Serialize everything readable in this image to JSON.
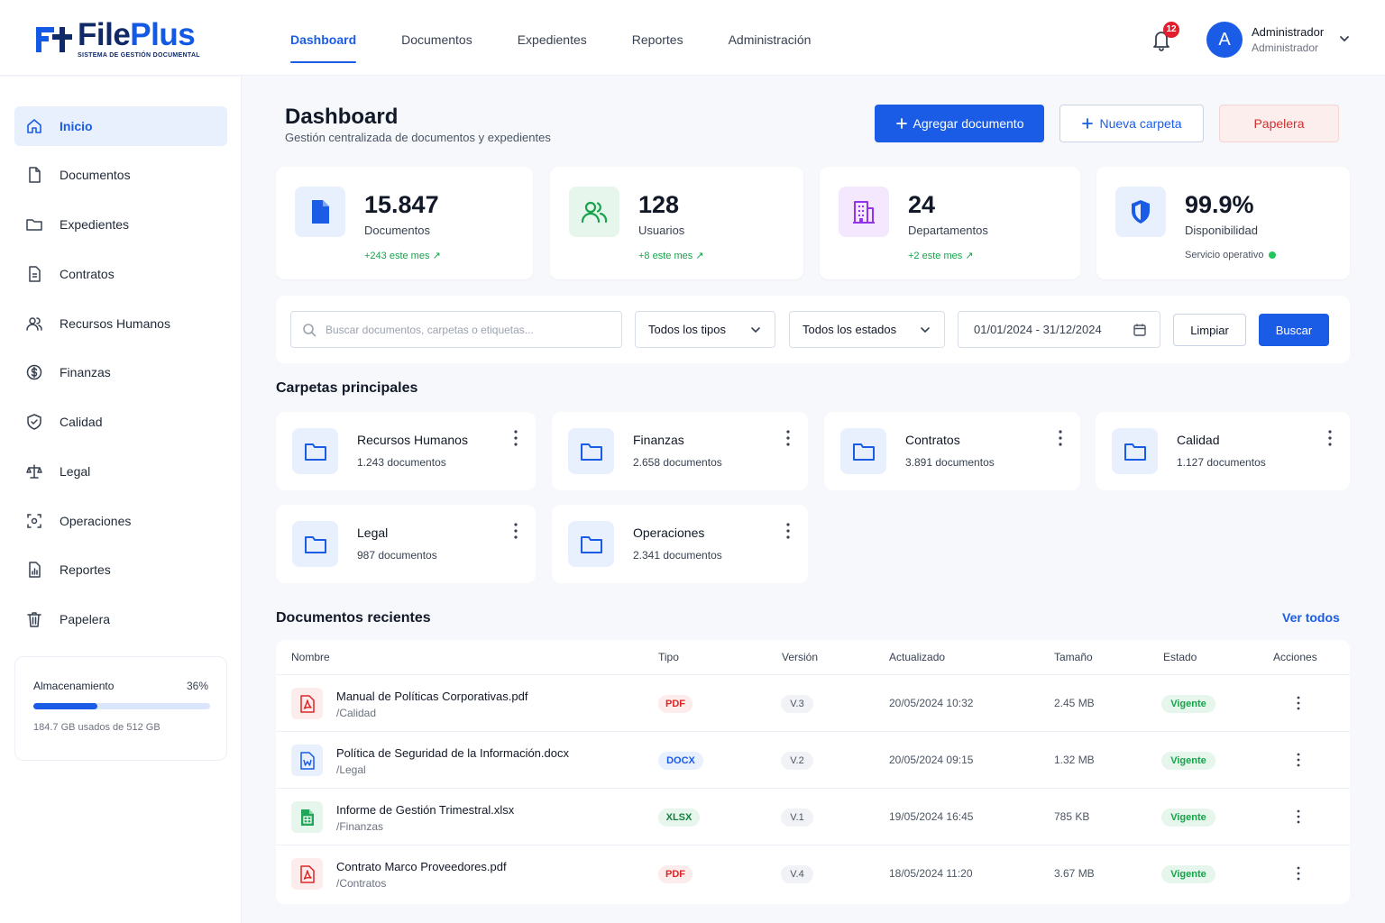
{
  "app": {
    "name_part1": "File",
    "name_part2": "Plus",
    "tagline": "SISTEMA DE GESTIÓN DOCUMENTAL"
  },
  "nav": [
    {
      "label": "Dashboard",
      "active": true
    },
    {
      "label": "Documentos"
    },
    {
      "label": "Expedientes"
    },
    {
      "label": "Reportes"
    },
    {
      "label": "Administración"
    }
  ],
  "notifications": {
    "count": "12"
  },
  "user": {
    "initial": "A",
    "name": "Administrador",
    "role": "Administrador"
  },
  "sidebar": {
    "items": [
      {
        "label": "Inicio",
        "icon": "home-icon",
        "active": true
      },
      {
        "label": "Documentos",
        "icon": "document-icon"
      },
      {
        "label": "Expedientes",
        "icon": "folder-icon"
      },
      {
        "label": "Contratos",
        "icon": "contract-icon"
      },
      {
        "label": "Recursos Humanos",
        "icon": "users-icon"
      },
      {
        "label": "Finanzas",
        "icon": "dollar-icon"
      },
      {
        "label": "Calidad",
        "icon": "shield-check-icon"
      },
      {
        "label": "Legal",
        "icon": "scale-icon"
      },
      {
        "label": "Operaciones",
        "icon": "operations-icon"
      },
      {
        "label": "Reportes",
        "icon": "report-icon"
      },
      {
        "label": "Papelera",
        "icon": "trash-icon"
      }
    ],
    "storage": {
      "label": "Almacenamiento",
      "percent_label": "36%",
      "fraction": 0.36,
      "used": "184.7 GB usados de 512 GB"
    }
  },
  "page": {
    "title": "Dashboard",
    "subtitle": "Gestión centralizada de documentos y expedientes",
    "add_document": "Agregar documento",
    "new_folder": "Nueva carpeta",
    "trash": "Papelera"
  },
  "stats": [
    {
      "value": "15.847",
      "label": "Documentos",
      "trend": "+243 este mes ↗",
      "icon": "document-icon",
      "color": "#1a5ce6"
    },
    {
      "value": "128",
      "label": "Usuarios",
      "trend": "+8 este mes ↗",
      "icon": "users-icon",
      "color": "#16a34a"
    },
    {
      "value": "24",
      "label": "Departamentos",
      "trend": "+2 este mes ↗",
      "icon": "building-icon",
      "color": "#9333ea"
    },
    {
      "value": "99.9%",
      "label": "Disponibilidad",
      "trend": "Servicio operativo",
      "icon": "shield-icon",
      "color": "#1a5ce6"
    }
  ],
  "filters": {
    "search_placeholder": "Buscar documentos, carpetas o etiquetas...",
    "type": "Todos los tipos",
    "status": "Todos los estados",
    "date_range": "01/01/2024 - 31/12/2024",
    "clear": "Limpiar",
    "search": "Buscar"
  },
  "folders_section": "Carpetas principales",
  "folders": [
    {
      "name": "Recursos Humanos",
      "count": "1.243 documentos"
    },
    {
      "name": "Finanzas",
      "count": "2.658 documentos"
    },
    {
      "name": "Contratos",
      "count": "3.891 documentos"
    },
    {
      "name": "Calidad",
      "count": "1.127 documentos"
    },
    {
      "name": "Legal",
      "count": "987 documentos"
    },
    {
      "name": "Operaciones",
      "count": "2.341 documentos"
    }
  ],
  "recent": {
    "title": "Documentos recientes",
    "see_all": "Ver todos",
    "columns": [
      "Nombre",
      "Tipo",
      "Versión",
      "Actualizado",
      "Tamaño",
      "Estado",
      "Acciones"
    ],
    "rows": [
      {
        "name": "Manual de Políticas Corporativas.pdf",
        "path": "/Calidad",
        "type": "PDF",
        "version": "V.3",
        "updated": "20/05/2024 10:32",
        "size": "2.45 MB",
        "status": "Vigente"
      },
      {
        "name": "Política de Seguridad de la Información.docx",
        "path": "/Legal",
        "type": "DOCX",
        "version": "V.2",
        "updated": "20/05/2024 09:15",
        "size": "1.32 MB",
        "status": "Vigente"
      },
      {
        "name": "Informe de Gestión Trimestral.xlsx",
        "path": "/Finanzas",
        "type": "XLSX",
        "version": "V.1",
        "updated": "19/05/2024 16:45",
        "size": "785 KB",
        "status": "Vigente"
      },
      {
        "name": "Contrato Marco Proveedores.pdf",
        "path": "/Contratos",
        "type": "PDF",
        "version": "V.4",
        "updated": "18/05/2024 11:20",
        "size": "3.67 MB",
        "status": "Vigente"
      }
    ]
  }
}
